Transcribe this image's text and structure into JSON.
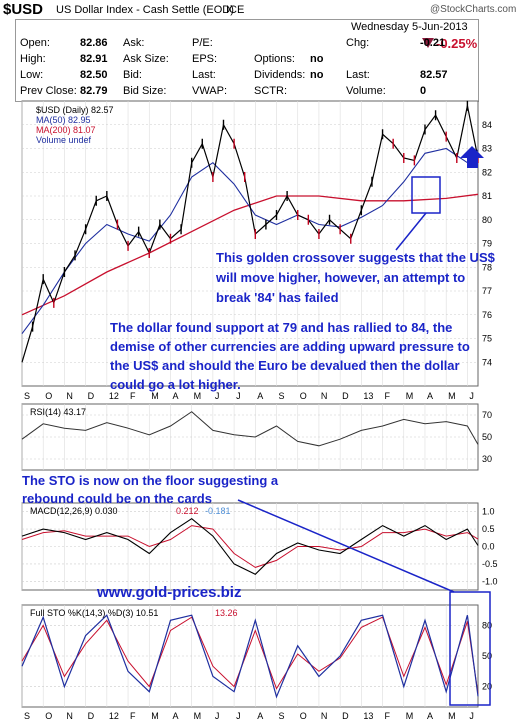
{
  "header": {
    "symbol": "$USD",
    "name": "US Dollar Index - Cash Settle (EOD)",
    "exchange": "ICE",
    "watermark": "@StockCharts.com",
    "date": "Wednesday  5-Jun-2013",
    "pct_change": "-0.25%",
    "quote_rows": [
      [
        {
          "l": "Open:",
          "v": "82.86"
        },
        {
          "l": "Ask:",
          "v": ""
        },
        {
          "l": "P/E:",
          "v": ""
        },
        {
          "l": "",
          "v": ""
        },
        {
          "l": "Chg:",
          "v": "-0.21"
        }
      ],
      [
        {
          "l": "High:",
          "v": "82.91"
        },
        {
          "l": "Ask Size:",
          "v": ""
        },
        {
          "l": "EPS:",
          "v": ""
        },
        {
          "l": "Options:",
          "v": "no"
        },
        {
          "l": "",
          "v": ""
        }
      ],
      [
        {
          "l": "Low:",
          "v": "82.50"
        },
        {
          "l": "Bid:",
          "v": ""
        },
        {
          "l": "Last:",
          "v": ""
        },
        {
          "l": "Dividends:",
          "v": "no"
        },
        {
          "l": "Last:",
          "v": "82.57"
        }
      ],
      [
        {
          "l": "Prev Close:",
          "v": "82.79"
        },
        {
          "l": "Bid Size:",
          "v": ""
        },
        {
          "l": "VWAP:",
          "v": ""
        },
        {
          "l": "SCTR:",
          "v": ""
        },
        {
          "l": "Volume:",
          "v": "0"
        }
      ]
    ]
  },
  "annotations": {
    "golden_crossover": "This golden crossover suggests that the US$ will move higher, however, an attempt to break '84' has failed",
    "support": "The dollar found support at 79 and has rallied to 84, the demise of other currencies are adding upward pressure to the US$ and should the Euro be devalued then the dollar could go a lot higher.",
    "sto_note": "The STO is now on the floor suggesting a rebound could be on the cards",
    "site": "www.gold-prices.biz"
  },
  "colors": {
    "price": "#000000",
    "down_bar": "#c0001c",
    "ma50": "#1f2fa0",
    "ma200": "#c8102e",
    "annotation": "#1a24c8",
    "up_arrow": "#1a24c8",
    "down_triangle": "#8b1a3b"
  },
  "chart_data": [
    {
      "type": "line",
      "panel": "price",
      "legend": [
        "$USD (Daily) 82.57",
        "MA(50) 82.95",
        "MA(200) 81.07",
        "Volume undef"
      ],
      "x_ticks": [
        "S",
        "O",
        "N",
        "D",
        "12",
        "F",
        "M",
        "A",
        "M",
        "J",
        "J",
        "A",
        "S",
        "O",
        "N",
        "D",
        "13",
        "F",
        "M",
        "A",
        "M",
        "J"
      ],
      "ylim": [
        73,
        85
      ],
      "y_ticks": [
        74,
        75,
        76,
        77,
        78,
        79,
        80,
        81,
        82,
        83,
        84
      ],
      "series": [
        {
          "name": "$USD (Daily) 82.57",
          "x": [
            0,
            0.5,
            1,
            1.5,
            2,
            2.5,
            3,
            3.5,
            4,
            4.5,
            5,
            5.5,
            6,
            6.5,
            7,
            7.5,
            8,
            8.5,
            9,
            9.5,
            10,
            10.5,
            11,
            11.5,
            12,
            12.5,
            13,
            13.5,
            14,
            14.5,
            15,
            15.5,
            16,
            16.5,
            17,
            17.5,
            18,
            18.5,
            19,
            19.5,
            20,
            20.5,
            21,
            21.5
          ],
          "y": [
            74.0,
            75.5,
            77.5,
            76.5,
            77.8,
            78.5,
            79.6,
            80.8,
            81.0,
            79.8,
            78.9,
            79.5,
            78.6,
            79.8,
            79.2,
            79.6,
            82.4,
            83.2,
            81.8,
            84.0,
            83.2,
            81.8,
            79.4,
            79.8,
            80.2,
            81.0,
            80.2,
            80.0,
            79.4,
            80.0,
            79.6,
            79.2,
            80.4,
            81.6,
            83.6,
            83.2,
            82.6,
            82.5,
            83.8,
            84.4,
            83.5,
            82.6,
            84.8,
            82.6
          ]
        },
        {
          "name": "MA(50) 82.95",
          "x": [
            0,
            1,
            2,
            3,
            4,
            5,
            6,
            7,
            8,
            9,
            10,
            11,
            12,
            13,
            14,
            15,
            16,
            17,
            18,
            19,
            20,
            21,
            21.5
          ],
          "y": [
            75.2,
            76.4,
            77.8,
            79.0,
            79.8,
            79.4,
            79.1,
            80.2,
            81.8,
            82.4,
            81.5,
            80.2,
            79.8,
            80.2,
            79.8,
            79.7,
            80.1,
            80.6,
            81.6,
            82.8,
            83.0,
            82.4,
            82.95
          ]
        },
        {
          "name": "MA(200) 81.07",
          "x": [
            0,
            2,
            4,
            6,
            8,
            10,
            12,
            14,
            16,
            18,
            20,
            21.5
          ],
          "y": [
            76.0,
            76.8,
            77.8,
            78.6,
            79.5,
            80.4,
            81.0,
            81.0,
            80.8,
            80.8,
            80.9,
            81.07
          ]
        }
      ]
    },
    {
      "type": "line",
      "panel": "rsi",
      "legend": "RSI(14) 43.17",
      "ylim": [
        20,
        80
      ],
      "y_ticks": [
        30,
        50,
        70
      ],
      "series": [
        {
          "name": "RSI(14) 43.17",
          "x": [
            0,
            1,
            2,
            3,
            4,
            5,
            6,
            7,
            8,
            9,
            10,
            11,
            12,
            13,
            14,
            15,
            16,
            17,
            18,
            19,
            20,
            21,
            21.5
          ],
          "y": [
            48,
            62,
            58,
            56,
            63,
            58,
            52,
            60,
            73,
            56,
            52,
            50,
            60,
            46,
            42,
            48,
            56,
            60,
            66,
            62,
            64,
            60,
            43.17
          ]
        }
      ]
    },
    {
      "type": "line",
      "panel": "macd",
      "legend": [
        "MACD(12,26,9) 0.030",
        "0.212",
        "-0.181"
      ],
      "ylim": [
        -1.25,
        1.25
      ],
      "y_ticks": [
        -1.0,
        -0.5,
        0.0,
        0.5,
        1.0
      ],
      "series": [
        {
          "name": "MACD(12,26,9) 0.030",
          "x": [
            0,
            1,
            2,
            3,
            4,
            5,
            6,
            7,
            8,
            9,
            10,
            11,
            12,
            13,
            14,
            15,
            16,
            17,
            18,
            19,
            20,
            21,
            21.5
          ],
          "y": [
            0.3,
            0.5,
            0.4,
            0.2,
            0.4,
            0.2,
            -0.2,
            0.4,
            0.8,
            0.3,
            -0.5,
            -0.8,
            -0.2,
            0.1,
            -0.1,
            -0.2,
            0.2,
            0.6,
            0.3,
            0.6,
            0.2,
            0.5,
            0.03
          ]
        },
        {
          "name": "0.212",
          "x": [
            0,
            1,
            2,
            3,
            4,
            5,
            6,
            7,
            8,
            9,
            10,
            11,
            12,
            13,
            14,
            15,
            16,
            17,
            18,
            19,
            20,
            21,
            21.5
          ],
          "y": [
            0.2,
            0.4,
            0.45,
            0.3,
            0.3,
            0.3,
            0.0,
            0.2,
            0.6,
            0.5,
            -0.2,
            -0.6,
            -0.4,
            0.0,
            0.0,
            -0.1,
            0.0,
            0.4,
            0.4,
            0.5,
            0.3,
            0.4,
            0.212
          ]
        }
      ]
    },
    {
      "type": "line",
      "panel": "sto",
      "legend": [
        "Full STO %K(14,3) %D(3) 10.51",
        "13.26"
      ],
      "ylim": [
        0,
        100
      ],
      "y_ticks": [
        20,
        50,
        80
      ],
      "series": [
        {
          "name": "Full STO %K(14,3) %D(3) 10.51",
          "x": [
            0,
            1,
            2,
            3,
            4,
            5,
            6,
            7,
            8,
            9,
            10,
            11,
            12,
            13,
            14,
            15,
            16,
            17,
            18,
            19,
            20,
            21,
            21.5
          ],
          "y": [
            40,
            88,
            20,
            70,
            90,
            35,
            15,
            85,
            90,
            30,
            15,
            85,
            10,
            60,
            30,
            50,
            85,
            90,
            20,
            85,
            15,
            90,
            10.51
          ]
        },
        {
          "name": "13.26",
          "x": [
            0,
            1,
            2,
            3,
            4,
            5,
            6,
            7,
            8,
            9,
            10,
            11,
            12,
            13,
            14,
            15,
            16,
            17,
            18,
            19,
            20,
            21,
            21.5
          ],
          "y": [
            45,
            80,
            30,
            62,
            85,
            45,
            20,
            75,
            88,
            40,
            20,
            75,
            18,
            52,
            35,
            48,
            78,
            88,
            30,
            78,
            22,
            84,
            13.26
          ]
        }
      ]
    }
  ]
}
